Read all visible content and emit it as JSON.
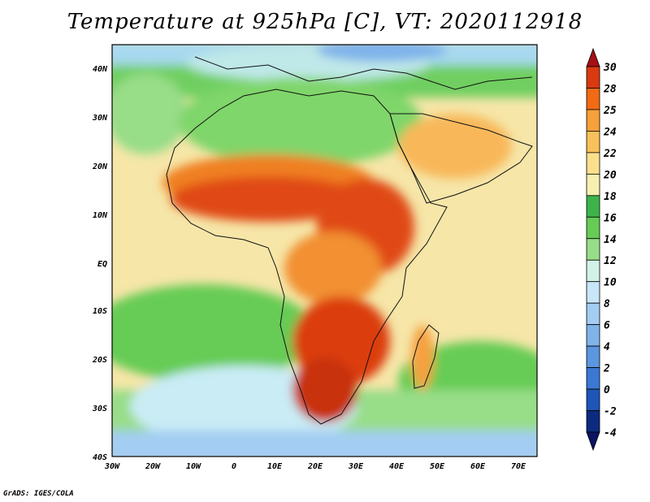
{
  "title": "Temperature at 925hPa [C], VT: 2020112918",
  "credit": "GrADS: IGES/COLA",
  "map": {
    "region": "Africa and surrounding oceans",
    "variable": "Temperature at 925hPa",
    "units": "C",
    "valid_time": "2020112918",
    "lon_range": [
      -30,
      75
    ],
    "lat_range": [
      -40,
      45
    ],
    "lon_ticks": [
      "30W",
      "20W",
      "10W",
      "0",
      "10E",
      "20E",
      "30E",
      "40E",
      "50E",
      "60E",
      "70E"
    ],
    "lat_ticks": [
      "40N",
      "30N",
      "20N",
      "10N",
      "EQ",
      "10S",
      "20S",
      "30S",
      "40S"
    ]
  },
  "colorbar": {
    "labels": [
      "30",
      "28",
      "25",
      "24",
      "22",
      "20",
      "18",
      "16",
      "14",
      "12",
      "10",
      "8",
      "6",
      "4",
      "2",
      "0",
      "-2",
      "-4"
    ],
    "colors": [
      "#a50f15",
      "#d93a10",
      "#f26a14",
      "#f8a03a",
      "#f9c15a",
      "#fbe08c",
      "#f6f0b0",
      "#3cb44b",
      "#66cc55",
      "#98dd88",
      "#d2f2e8",
      "#c8e6f8",
      "#a3cdf2",
      "#7fb3ea",
      "#5b96e0",
      "#3a78d4",
      "#1d55b8",
      "#0c2a80",
      "#0a1460"
    ]
  },
  "colors": {
    "ocean_warm": "#f8dca0",
    "ocean_mild": "#f6ebb0",
    "ocean_cool_green": "#6ccf5e",
    "ocean_cold": "#c9ecf5",
    "land_hot": "#d93a10",
    "land_warm": "#f08020"
  }
}
